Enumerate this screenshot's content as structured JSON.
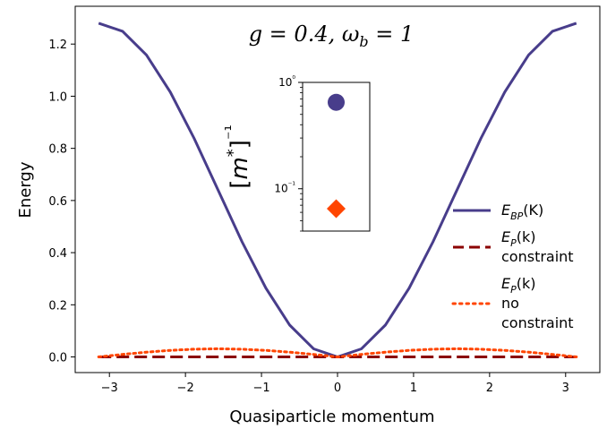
{
  "chart_data": {
    "type": "line",
    "title": "g = 0.4, ω_b = 1",
    "xlabel": "Quasiparticle momentum",
    "ylabel": "Energy",
    "xlim": [
      -3.45,
      3.45
    ],
    "ylim": [
      -0.06,
      1.345
    ],
    "xticks": [
      -3,
      -2,
      -1,
      0,
      1,
      2,
      3
    ],
    "xtick_labels": [
      "−3",
      "−2",
      "−1",
      "0",
      "1",
      "2",
      "3"
    ],
    "yticks": [
      0.0,
      0.2,
      0.4,
      0.6,
      0.8,
      1.0,
      1.2
    ],
    "ytick_labels": [
      "0.0",
      "0.2",
      "0.4",
      "0.6",
      "0.8",
      "1.0",
      "1.2"
    ],
    "grid": false,
    "legend_position": "right",
    "series": [
      {
        "name": "E_BP(K)",
        "style": "solid",
        "color": "#483d8b",
        "x": [
          -3.1416,
          -2.8274,
          -2.5133,
          -2.1991,
          -1.885,
          -1.5708,
          -1.2566,
          -0.9425,
          -0.6283,
          -0.3142,
          0.0,
          0.3142,
          0.6283,
          0.9425,
          1.2566,
          1.5708,
          1.885,
          2.1991,
          2.5133,
          2.8274,
          3.1416
        ],
        "y": [
          1.28,
          1.249,
          1.158,
          1.016,
          0.838,
          0.64,
          0.442,
          0.264,
          0.122,
          0.031,
          0.0,
          0.031,
          0.122,
          0.264,
          0.442,
          0.64,
          0.838,
          1.016,
          1.158,
          1.249,
          1.28
        ]
      },
      {
        "name": "E_P(k) constraint",
        "style": "dashed",
        "color": "#8b0000",
        "x": [
          -3.1416,
          3.1416
        ],
        "y": [
          0.0,
          0.0
        ]
      },
      {
        "name": "E_P(k) no constraint",
        "style": "dotted",
        "color": "#ff4500",
        "x": [
          -3.1416,
          -2.8274,
          -2.5133,
          -2.1991,
          -1.885,
          -1.5708,
          -1.2566,
          -0.9425,
          -0.6283,
          -0.3142,
          0.0,
          0.3142,
          0.6283,
          0.9425,
          1.2566,
          1.5708,
          1.885,
          2.1991,
          2.5133,
          2.8274,
          3.1416
        ],
        "y": [
          0.0,
          0.0097,
          0.0184,
          0.0253,
          0.0297,
          0.0313,
          0.0297,
          0.0253,
          0.0184,
          0.0097,
          0.0,
          0.0097,
          0.0184,
          0.0253,
          0.0297,
          0.0313,
          0.0297,
          0.0253,
          0.0184,
          0.0097,
          0.0
        ]
      }
    ],
    "legend": [
      {
        "label_main": "E",
        "label_sub": "BP",
        "label_rest": "(K)",
        "extra_lines": [],
        "style": "solid",
        "color": "#483d8b"
      },
      {
        "label_main": "E",
        "label_sub": "P",
        "label_rest": "(k)",
        "extra_lines": [
          "constraint"
        ],
        "style": "dashed",
        "color": "#8b0000"
      },
      {
        "label_main": "E",
        "label_sub": "P",
        "label_rest": "(k)",
        "extra_lines": [
          "no",
          "constraint"
        ],
        "style": "dotted",
        "color": "#ff4500"
      }
    ],
    "inset": {
      "type": "scatter",
      "yscale": "log",
      "ylabel": "[m*]⁻¹",
      "ylim": [
        0.04,
        1.0
      ],
      "ytick_labels": [
        "10⁰",
        "10⁻¹"
      ],
      "points": [
        {
          "y": 0.65,
          "marker": "circle",
          "color": "#483d8b"
        },
        {
          "y": 0.065,
          "marker": "diamond",
          "color": "#ff4500"
        }
      ]
    }
  }
}
